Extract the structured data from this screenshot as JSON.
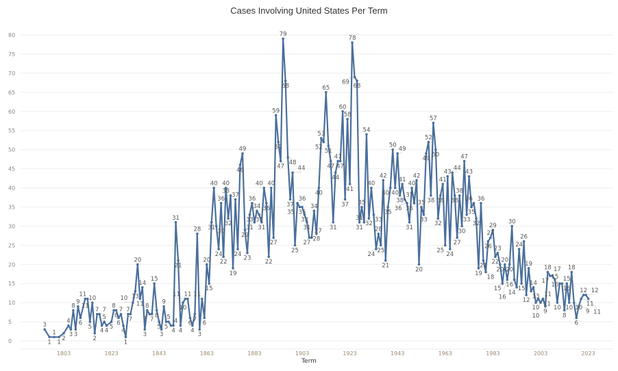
{
  "chart_data": {
    "type": "line",
    "title": "Cases Involving United States Per Term",
    "xlabel": "Term",
    "ylabel": "",
    "ylim": [
      0,
      80
    ],
    "yticks": [
      0,
      5,
      10,
      15,
      20,
      25,
      30,
      35,
      40,
      45,
      50,
      55,
      60,
      65,
      70,
      75,
      80
    ],
    "xticks": [
      1803,
      1823,
      1843,
      1863,
      1883,
      1903,
      1923,
      1943,
      1963,
      1983,
      2003,
      2023
    ],
    "grid": "horizontal",
    "data_labels": true,
    "color": "#4a6f9c",
    "x": [
      1795,
      1797,
      1799,
      1801,
      1803,
      1805,
      1806,
      1807,
      1808,
      1809,
      1810,
      1812,
      1813,
      1814,
      1815,
      1816,
      1817,
      1818,
      1819,
      1820,
      1821,
      1823,
      1824,
      1825,
      1826,
      1827,
      1828,
      1829,
      1830,
      1831,
      1832,
      1833,
      1834,
      1835,
      1836,
      1837,
      1838,
      1839,
      1840,
      1841,
      1842,
      1843,
      1844,
      1845,
      1846,
      1847,
      1848,
      1849,
      1850,
      1851,
      1852,
      1853,
      1854,
      1855,
      1856,
      1857,
      1858,
      1859,
      1860,
      1861,
      1862,
      1863,
      1864,
      1865,
      1866,
      1867,
      1868,
      1869,
      1870,
      1871,
      1872,
      1873,
      1874,
      1875,
      1876,
      1877,
      1878,
      1879,
      1880,
      1881,
      1882,
      1883,
      1884,
      1885,
      1886,
      1887,
      1888,
      1889,
      1890,
      1891,
      1892,
      1893,
      1894,
      1895,
      1896,
      1897,
      1898,
      1899,
      1900,
      1901,
      1902,
      1903,
      1904,
      1905,
      1906,
      1907,
      1908,
      1909,
      1910,
      1911,
      1912,
      1913,
      1914,
      1915,
      1916,
      1917,
      1918,
      1919,
      1920,
      1921,
      1922,
      1923,
      1924,
      1925,
      1926,
      1927,
      1928,
      1929,
      1930,
      1931,
      1932,
      1933,
      1934,
      1935,
      1936,
      1937,
      1938,
      1939,
      1940,
      1941,
      1942,
      1943,
      1944,
      1945,
      1946,
      1947,
      1948,
      1949,
      1950,
      1951,
      1952,
      1953,
      1954,
      1955,
      1956,
      1957,
      1958,
      1959,
      1960,
      1961,
      1962,
      1963,
      1964,
      1965,
      1966,
      1967,
      1968,
      1969,
      1970,
      1971,
      1972,
      1973,
      1974,
      1975,
      1976,
      1977,
      1978,
      1979,
      1980,
      1981,
      1982,
      1983,
      1984,
      1985,
      1986,
      1987,
      1988,
      1989,
      1990,
      1991,
      1992,
      1993,
      1994,
      1995,
      1996,
      1997,
      1998,
      1999,
      2000,
      2001,
      2002,
      2003,
      2004,
      2005,
      2006,
      2007,
      2008,
      2009,
      2010,
      2011,
      2012,
      2013,
      2014,
      2015,
      2016,
      2017,
      2018,
      2019,
      2020,
      2021,
      2022,
      2023
    ],
    "values": [
      3,
      1,
      1,
      1,
      2,
      4,
      3,
      8,
      3,
      9,
      6,
      11,
      11,
      5,
      10,
      2,
      7,
      7,
      4,
      5,
      4,
      5,
      8,
      8,
      6,
      7,
      4,
      1,
      7,
      7,
      10,
      13,
      20,
      11,
      14,
      3,
      8,
      7,
      7,
      15,
      8,
      5,
      3,
      9,
      5,
      5,
      4,
      4,
      31,
      21,
      4,
      10,
      11,
      11,
      6,
      4,
      7,
      28,
      3,
      11,
      6,
      20,
      15,
      31,
      40,
      30,
      24,
      36,
      22,
      40,
      32,
      38,
      19,
      37,
      24,
      46,
      49,
      29,
      23,
      33,
      36,
      31,
      34,
      33,
      31,
      40,
      36,
      22,
      40,
      27,
      59,
      52,
      47,
      79,
      68,
      48,
      37,
      44,
      25,
      36,
      35,
      35,
      33,
      31,
      27,
      27,
      34,
      28,
      40,
      53,
      52,
      65,
      51,
      47,
      31,
      44,
      47,
      47,
      60,
      37,
      58,
      41,
      78,
      69,
      68,
      31,
      35,
      31,
      54,
      32,
      40,
      33,
      24,
      28,
      25,
      42,
      21,
      35,
      40,
      50,
      40,
      49,
      38,
      41,
      37,
      36,
      31,
      40,
      36,
      42,
      20,
      35,
      33,
      49,
      52,
      38,
      57,
      50,
      32,
      38,
      41,
      25,
      43,
      24,
      44,
      38,
      27,
      38,
      30,
      47,
      33,
      43,
      35,
      36,
      32,
      19,
      36,
      21,
      18,
      26,
      27,
      29,
      22,
      23,
      20,
      15,
      20,
      16,
      20,
      30,
      16,
      14,
      24,
      15,
      26,
      12,
      19,
      13,
      14,
      10,
      11,
      10,
      11,
      9,
      18,
      17,
      17,
      16,
      10,
      15,
      15,
      8,
      15,
      10,
      18,
      10,
      6,
      9,
      11,
      12,
      12,
      11
    ]
  }
}
